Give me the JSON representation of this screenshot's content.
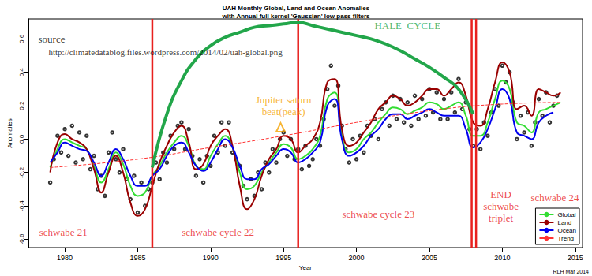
{
  "chart_data": {
    "type": "line",
    "title": "UAH Monthly Global, Land and Ocean Anomalies\nwith Annual full kernel 'Gaussian' low pass filters",
    "xlabel": "Year",
    "ylabel": "Anomalies",
    "xlim": [
      1977.5,
      2015.5
    ],
    "xticks": [
      1980,
      1985,
      1990,
      1995,
      2000,
      2005,
      2010,
      2015
    ],
    "ylim": [
      -0.65,
      0.72
    ],
    "yticks": [
      -0.6,
      -0.4,
      -0.2,
      {
        "value": 0,
        "label": "0.0"
      },
      0.2,
      0.4,
      0.6
    ],
    "grid": false,
    "legend": "lower right",
    "series": [
      {
        "name": "Global",
        "color": "#33dd33",
        "line_style": "solid",
        "x": [
          1979,
          1979.5,
          1980,
          1980.5,
          1981,
          1981.5,
          1982,
          1982.5,
          1983,
          1983.5,
          1984,
          1984.5,
          1985,
          1985.5,
          1986,
          1986.5,
          1987,
          1987.5,
          1988,
          1988.5,
          1989,
          1989.5,
          1990,
          1990.5,
          1991,
          1991.5,
          1992,
          1992.5,
          1993,
          1993.5,
          1994,
          1994.5,
          1995,
          1995.5,
          1996,
          1996.5,
          1997,
          1997.5,
          1998,
          1998.5,
          1999,
          1999.5,
          2000,
          2000.5,
          2001,
          2001.5,
          2002,
          2002.5,
          2003,
          2003.5,
          2004,
          2004.5,
          2005,
          2005.5,
          2006,
          2006.5,
          2007,
          2007.5,
          2008,
          2008.5,
          2009,
          2009.5,
          2010,
          2010.5,
          2011,
          2011.5,
          2012,
          2012.5,
          2013,
          2013.5,
          2014
        ],
        "values": [
          -0.17,
          -0.06,
          0,
          -0.02,
          -0.04,
          -0.06,
          -0.16,
          -0.26,
          -0.18,
          -0.08,
          -0.15,
          -0.28,
          -0.34,
          -0.32,
          -0.22,
          -0.16,
          -0.08,
          -0.02,
          0.02,
          -0.04,
          -0.16,
          -0.18,
          -0.1,
          -0.03,
          0.02,
          -0.05,
          -0.2,
          -0.3,
          -0.28,
          -0.2,
          -0.14,
          -0.08,
          -0.03,
          -0.05,
          -0.12,
          -0.1,
          -0.06,
          0.02,
          0.24,
          0.28,
          0.02,
          -0.08,
          -0.06,
          0,
          0.04,
          0.1,
          0.15,
          0.19,
          0.18,
          0.15,
          0.17,
          0.19,
          0.22,
          0.21,
          0.18,
          0.2,
          0.22,
          0.14,
          0.02,
          0.02,
          0.1,
          0.24,
          0.35,
          0.3,
          0.1,
          0.08,
          0.04,
          0.16,
          0.18,
          0.2,
          0.22
        ]
      },
      {
        "name": "Land",
        "color": "#990000",
        "line_style": "solid",
        "x": [
          1979,
          1979.5,
          1980,
          1980.5,
          1981,
          1981.5,
          1982,
          1982.5,
          1983,
          1983.5,
          1984,
          1984.5,
          1985,
          1985.5,
          1986,
          1986.5,
          1987,
          1987.5,
          1988,
          1988.5,
          1989,
          1989.5,
          1990,
          1990.5,
          1991,
          1991.5,
          1992,
          1992.5,
          1993,
          1993.5,
          1994,
          1994.5,
          1995,
          1995.5,
          1996,
          1996.5,
          1997,
          1997.5,
          1998,
          1998.5,
          1999,
          1999.5,
          2000,
          2000.5,
          2001,
          2001.5,
          2002,
          2002.5,
          2003,
          2003.5,
          2004,
          2004.5,
          2005,
          2005.5,
          2006,
          2006.5,
          2007,
          2007.5,
          2008,
          2008.5,
          2009,
          2009.5,
          2010,
          2010.5,
          2011,
          2011.5,
          2012,
          2012.5,
          2013,
          2013.5,
          2014
        ],
        "values": [
          -0.2,
          -0.02,
          0.03,
          0,
          -0.02,
          -0.06,
          -0.18,
          -0.32,
          -0.2,
          -0.1,
          -0.2,
          -0.38,
          -0.46,
          -0.42,
          -0.28,
          -0.14,
          -0.04,
          0.04,
          0.08,
          -0.02,
          -0.18,
          -0.15,
          -0.04,
          0.02,
          0.06,
          -0.04,
          -0.28,
          -0.42,
          -0.36,
          -0.22,
          -0.12,
          -0.06,
          0.02,
          0,
          -0.08,
          -0.04,
          0,
          0.1,
          0.34,
          0.36,
          0.06,
          -0.04,
          -0.02,
          0.04,
          0.1,
          0.18,
          0.22,
          0.26,
          0.24,
          0.2,
          0.22,
          0.26,
          0.3,
          0.3,
          0.26,
          0.3,
          0.34,
          0.26,
          0.1,
          0.08,
          0.18,
          0.34,
          0.46,
          0.4,
          0.18,
          0.2,
          0.14,
          0.3,
          0.28,
          0.26,
          0.28
        ]
      },
      {
        "name": "Ocean",
        "color": "#0000ee",
        "line_style": "solid",
        "x": [
          1979,
          1979.5,
          1980,
          1980.5,
          1981,
          1981.5,
          1982,
          1982.5,
          1983,
          1983.5,
          1984,
          1984.5,
          1985,
          1985.5,
          1986,
          1986.5,
          1987,
          1987.5,
          1988,
          1988.5,
          1989,
          1989.5,
          1990,
          1990.5,
          1991,
          1991.5,
          1992,
          1992.5,
          1993,
          1993.5,
          1994,
          1994.5,
          1995,
          1995.5,
          1996,
          1996.5,
          1997,
          1997.5,
          1998,
          1998.5,
          1999,
          1999.5,
          2000,
          2000.5,
          2001,
          2001.5,
          2002,
          2002.5,
          2003,
          2003.5,
          2004,
          2004.5,
          2005,
          2005.5,
          2006,
          2006.5,
          2007,
          2007.5,
          2008,
          2008.5,
          2009,
          2009.5,
          2010,
          2010.5,
          2011,
          2011.5,
          2012,
          2012.5,
          2013,
          2013.5
        ],
        "values": [
          -0.14,
          -0.08,
          -0.02,
          -0.04,
          -0.06,
          -0.07,
          -0.14,
          -0.22,
          -0.14,
          -0.06,
          -0.12,
          -0.22,
          -0.28,
          -0.28,
          -0.22,
          -0.18,
          -0.1,
          -0.04,
          -0.02,
          -0.08,
          -0.16,
          -0.19,
          -0.14,
          -0.06,
          0,
          -0.05,
          -0.16,
          -0.24,
          -0.24,
          -0.18,
          -0.15,
          -0.1,
          -0.06,
          -0.08,
          -0.14,
          -0.12,
          -0.08,
          -0.02,
          0.2,
          0.24,
          0,
          -0.1,
          -0.08,
          -0.04,
          0.02,
          0.06,
          0.12,
          0.15,
          0.15,
          0.12,
          0.14,
          0.16,
          0.18,
          0.16,
          0.14,
          0.14,
          0.14,
          0.06,
          -0.05,
          -0.02,
          0.06,
          0.18,
          0.3,
          0.24,
          0.04,
          0.02,
          0,
          0.1,
          0.14,
          0.16
        ]
      },
      {
        "name": "Trend",
        "color": "#ff3333",
        "line_style": "dashed",
        "x": [
          1979,
          1985,
          1990,
          1995,
          2000,
          2005,
          2010,
          2014
        ],
        "values": [
          -0.17,
          -0.12,
          -0.05,
          0.02,
          0.1,
          0.17,
          0.21,
          0.22
        ]
      },
      {
        "type": "scatter",
        "color": "#000000",
        "marker": "open_circle",
        "x": [
          1979,
          1979.25,
          1979.5,
          1979.75,
          1980,
          1980.25,
          1980.5,
          1980.75,
          1981,
          1981.25,
          1981.5,
          1981.75,
          1982,
          1982.25,
          1982.5,
          1982.75,
          1983,
          1983.25,
          1983.5,
          1983.75,
          1984,
          1984.25,
          1984.5,
          1984.75,
          1985,
          1985.25,
          1985.5,
          1985.75,
          1986,
          1986.25,
          1986.5,
          1986.75,
          1987,
          1987.25,
          1987.5,
          1987.75,
          1988,
          1988.25,
          1988.5,
          1988.75,
          1989,
          1989.25,
          1989.5,
          1989.75,
          1990,
          1990.25,
          1990.5,
          1990.75,
          1991,
          1991.25,
          1991.5,
          1991.75,
          1992,
          1992.25,
          1992.5,
          1992.75,
          1993,
          1993.25,
          1993.5,
          1993.75,
          1994,
          1994.25,
          1994.5,
          1994.75,
          1995,
          1995.25,
          1995.5,
          1995.75,
          1996,
          1996.25,
          1996.5,
          1996.75,
          1997,
          1997.25,
          1997.5,
          1997.75,
          1998,
          1998.25,
          1998.5,
          1998.75,
          1999,
          1999.25,
          1999.5,
          1999.75,
          2000,
          2000.25,
          2000.5,
          2000.75,
          2001,
          2001.25,
          2001.5,
          2001.75,
          2002,
          2002.25,
          2002.5,
          2002.75,
          2003,
          2003.25,
          2003.5,
          2003.75,
          2004,
          2004.25,
          2004.5,
          2004.75,
          2005,
          2005.25,
          2005.5,
          2005.75,
          2006,
          2006.25,
          2006.5,
          2006.75,
          2007,
          2007.25,
          2007.5,
          2007.75,
          2008,
          2008.25,
          2008.5,
          2008.75,
          2009,
          2009.25,
          2009.5,
          2009.75,
          2010,
          2010.25,
          2010.5,
          2010.75,
          2011,
          2011.25,
          2011.5,
          2011.75,
          2012,
          2012.25,
          2012.5,
          2012.75,
          2013,
          2013.25,
          2013.5,
          2013.75
        ],
        "values": [
          -0.26,
          -0.12,
          0.02,
          -0.08,
          0.06,
          -0.1,
          0.08,
          -0.14,
          0.04,
          -0.12,
          0.02,
          -0.18,
          -0.1,
          -0.3,
          -0.22,
          -0.34,
          -0.08,
          0.04,
          -0.12,
          -0.2,
          -0.06,
          -0.24,
          -0.36,
          -0.22,
          -0.44,
          -0.26,
          -0.4,
          -0.3,
          -0.26,
          -0.14,
          -0.24,
          -0.08,
          -0.14,
          0.02,
          -0.06,
          0.08,
          0.1,
          -0.06,
          0.06,
          -0.1,
          -0.22,
          -0.12,
          -0.26,
          -0.1,
          -0.16,
          0.02,
          -0.08,
          0.1,
          -0.04,
          0.1,
          -0.08,
          -0.12,
          -0.16,
          -0.28,
          -0.36,
          -0.24,
          -0.34,
          -0.2,
          -0.3,
          -0.14,
          -0.2,
          -0.06,
          -0.14,
          0,
          0.04,
          -0.1,
          0,
          -0.12,
          -0.06,
          -0.18,
          -0.04,
          -0.16,
          -0.12,
          0,
          -0.04,
          0.12,
          0.3,
          0.44,
          0.2,
          0.32,
          0.08,
          -0.06,
          -0.14,
          0,
          -0.12,
          0.02,
          -0.08,
          0.08,
          0.02,
          0.12,
          0,
          0.18,
          0.22,
          0.08,
          0.26,
          0.12,
          0.24,
          0.1,
          0.22,
          0.08,
          0.26,
          0.12,
          0.24,
          0.14,
          0.3,
          0.16,
          0.28,
          0.12,
          0.24,
          0.12,
          0.28,
          0.16,
          0.36,
          0.18,
          0.22,
          0.06,
          -0.04,
          0.06,
          -0.06,
          0.1,
          0.02,
          0.16,
          0.3,
          0.2,
          0.44,
          0.34,
          0.4,
          0.22,
          0,
          0.14,
          0.04,
          0.16,
          -0.04,
          0.1,
          0.24,
          0.14,
          0.28,
          0.1,
          0.2,
          0.26
        ]
      }
    ],
    "vlines": [
      {
        "x": 1986.0,
        "color": "#e8201e"
      },
      {
        "x": 1996.0,
        "color": "#e8201e"
      },
      {
        "x": 2007.9,
        "color": "#e8201e"
      },
      {
        "x": 2008.2,
        "color": "#e8201e"
      }
    ],
    "hale_cycle": {
      "color": "#22a64a",
      "x": [
        1986,
        1987,
        1988,
        1989,
        1990,
        1991,
        1992,
        1993,
        1994,
        1995,
        1996,
        1997,
        1998,
        1999,
        2000,
        2001,
        2002,
        2003,
        2004,
        2005,
        2006,
        2007,
        2008
      ],
      "values": [
        -0.17,
        0.15,
        0.35,
        0.48,
        0.56,
        0.61,
        0.64,
        0.67,
        0.68,
        0.69,
        0.7,
        0.68,
        0.66,
        0.64,
        0.62,
        0.6,
        0.57,
        0.53,
        0.48,
        0.43,
        0.37,
        0.3,
        0.15
      ]
    },
    "markers": [
      {
        "x": 1994.8,
        "y": 0.07,
        "color": "#f5a300",
        "marker": "triangle"
      }
    ],
    "annotations": [
      {
        "text": "source",
        "x": 1979.1,
        "y": 0.6,
        "color": "#000000"
      },
      {
        "text": "http://climatedatablog.files.wordpress.com/2014/02/uah-global.png",
        "x": 1986.9,
        "y": 0.52,
        "color": "#000000"
      },
      {
        "text": "HALE  CYCLE",
        "x": 2003.5,
        "y": 0.68,
        "color": "#22a64a"
      },
      {
        "text": "Jupiter saturn\nbeat(peak)",
        "x": 1995.0,
        "y": 0.2,
        "color": "#f5a300"
      },
      {
        "text": "schwabe 21",
        "x": 1979.9,
        "y": -0.56,
        "color": "#e8201e"
      },
      {
        "text": "schwabe cycle 22",
        "x": 1990.5,
        "y": -0.56,
        "color": "#e8201e"
      },
      {
        "text": "schwabe cycle 23",
        "x": 2001.5,
        "y": -0.45,
        "color": "#e8201e"
      },
      {
        "text": "END\nschwabe\ntriplet",
        "x": 2009.9,
        "y": -0.4,
        "color": "#e8201e"
      },
      {
        "text": "schwabe 24",
        "x": 2013.6,
        "y": -0.35,
        "color": "#e8201e"
      }
    ],
    "credit": "RLH Mar 2014"
  }
}
